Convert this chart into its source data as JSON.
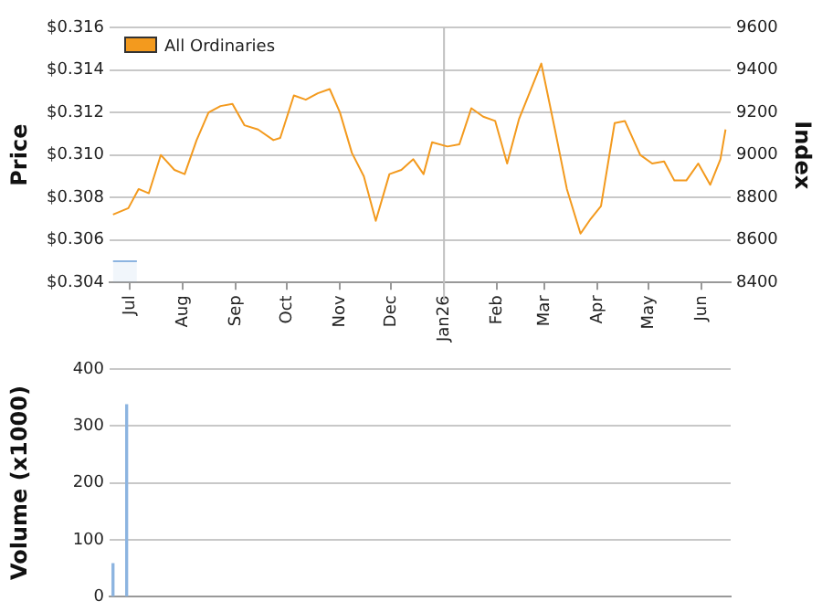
{
  "chart_data": [
    {
      "type": "line",
      "ylabel": "Price",
      "y2label": "Index",
      "xlim": [
        "2025-06-19",
        "2026-06-18"
      ],
      "xticks": [
        {
          "value": "2025-07-01",
          "label": "Jul"
        },
        {
          "value": "2025-08-01",
          "label": "Aug"
        },
        {
          "value": "2025-09-01",
          "label": "Sep"
        },
        {
          "value": "2025-10-01",
          "label": "Oct"
        },
        {
          "value": "2025-11-01",
          "label": "Nov"
        },
        {
          "value": "2025-12-01",
          "label": "Dec"
        },
        {
          "value": "2026-01-01",
          "label": "Jan26"
        },
        {
          "value": "2026-02-01",
          "label": "Feb"
        },
        {
          "value": "2026-03-01",
          "label": "Mar"
        },
        {
          "value": "2026-04-01",
          "label": "Apr"
        },
        {
          "value": "2026-05-01",
          "label": "May"
        },
        {
          "value": "2026-06-01",
          "label": "Jun"
        }
      ],
      "ylim": [
        0.304,
        0.316
      ],
      "yticks": [
        {
          "value": 0.304,
          "label": "$0.304"
        },
        {
          "value": 0.306,
          "label": "$0.306"
        },
        {
          "value": 0.308,
          "label": "$0.308"
        },
        {
          "value": 0.31,
          "label": "$0.310"
        },
        {
          "value": 0.312,
          "label": "$0.312"
        },
        {
          "value": 0.314,
          "label": "$0.314"
        },
        {
          "value": 0.316,
          "label": "$0.316"
        }
      ],
      "y2lim": [
        8400,
        9600
      ],
      "y2ticks": [
        8400,
        8600,
        8800,
        9000,
        9200,
        9400,
        9600
      ],
      "grid": "y",
      "legend": "top left",
      "ref_lines": [
        {
          "axis": "x",
          "value": "2026-01-01",
          "color": "#c0c0c0"
        }
      ],
      "series": [
        {
          "type": "area",
          "color": "#8cb4e0",
          "x": [
            "2025-06-21",
            "2025-07-05"
          ],
          "values": [
            0.305,
            0.305
          ]
        },
        {
          "name": "All Ordinaries",
          "color": "#f39a1e",
          "axis": "y2",
          "x": [
            "2025-06-21",
            "2025-06-30",
            "2025-07-06",
            "2025-07-12",
            "2025-07-19",
            "2025-07-27",
            "2025-08-02",
            "2025-08-09",
            "2025-08-16",
            "2025-08-23",
            "2025-08-30",
            "2025-09-06",
            "2025-09-14",
            "2025-09-23",
            "2025-09-27",
            "2025-10-05",
            "2025-10-12",
            "2025-10-19",
            "2025-10-26",
            "2025-11-01",
            "2025-11-08",
            "2025-11-15",
            "2025-11-22",
            "2025-11-30",
            "2025-12-07",
            "2025-12-14",
            "2025-12-20",
            "2025-12-25",
            "2026-01-03",
            "2026-01-10",
            "2026-01-17",
            "2026-01-24",
            "2026-01-31",
            "2026-02-07",
            "2026-02-14",
            "2026-02-21",
            "2026-02-27",
            "2026-03-07",
            "2026-03-14",
            "2026-03-22",
            "2026-03-28",
            "2026-04-03",
            "2026-04-11",
            "2026-04-17",
            "2026-04-26",
            "2026-05-03",
            "2026-05-10",
            "2026-05-16",
            "2026-05-23",
            "2026-05-30",
            "2026-06-06",
            "2026-06-12",
            "2026-06-15"
          ],
          "values": [
            8720,
            8750,
            8840,
            8820,
            9000,
            8930,
            8910,
            9070,
            9200,
            9230,
            9240,
            9140,
            9120,
            9070,
            9080,
            9280,
            9260,
            9290,
            9310,
            9200,
            9010,
            8900,
            8690,
            8910,
            8930,
            8980,
            8910,
            9060,
            9040,
            9050,
            9220,
            9180,
            9160,
            8960,
            9170,
            9310,
            9430,
            9120,
            8840,
            8630,
            8700,
            8760,
            9150,
            9160,
            9000,
            8960,
            8970,
            8880,
            8880,
            8960,
            8860,
            8980,
            9120
          ]
        }
      ]
    },
    {
      "type": "bar",
      "ylabel": "Volume (x1000)",
      "xlim": [
        "2025-06-19",
        "2026-06-18"
      ],
      "ylim": [
        0,
        400
      ],
      "yticks": [
        0,
        100,
        200,
        300,
        400
      ],
      "grid": "y",
      "tick_labels": "y",
      "x": [
        "2025-06-21",
        "2025-06-29"
      ],
      "values": [
        58,
        337
      ],
      "color": "#8cb4e0"
    }
  ]
}
